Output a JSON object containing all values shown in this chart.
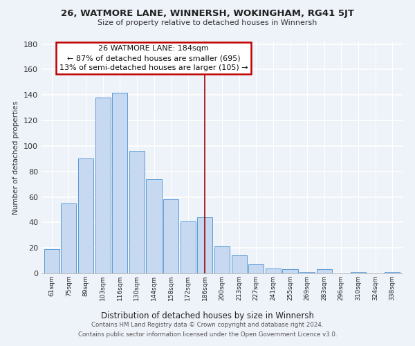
{
  "title": "26, WATMORE LANE, WINNERSH, WOKINGHAM, RG41 5JT",
  "subtitle": "Size of property relative to detached houses in Winnersh",
  "xlabel": "Distribution of detached houses by size in Winnersh",
  "ylabel": "Number of detached properties",
  "bar_labels": [
    "61sqm",
    "75sqm",
    "89sqm",
    "103sqm",
    "116sqm",
    "130sqm",
    "144sqm",
    "158sqm",
    "172sqm",
    "186sqm",
    "200sqm",
    "213sqm",
    "227sqm",
    "241sqm",
    "255sqm",
    "269sqm",
    "283sqm",
    "296sqm",
    "310sqm",
    "324sqm",
    "338sqm"
  ],
  "bar_values": [
    19,
    55,
    90,
    138,
    142,
    96,
    74,
    58,
    41,
    44,
    21,
    14,
    7,
    4,
    3,
    1,
    3,
    0,
    1,
    0,
    1
  ],
  "bar_color": "#c6d9f1",
  "bar_edge_color": "#5b9bd5",
  "property_line_label": "26 WATMORE LANE: 184sqm",
  "annotation_line1": "← 87% of detached houses are smaller (695)",
  "annotation_line2": "13% of semi-detached houses are larger (105) →",
  "annotation_box_color": "#ffffff",
  "annotation_box_edge": "#c00000",
  "property_line_color": "#990000",
  "ylim": [
    0,
    182
  ],
  "footer_line1": "Contains HM Land Registry data © Crown copyright and database right 2024.",
  "footer_line2": "Contains public sector information licensed under the Open Government Licence v3.0.",
  "background_color": "#eef2f9"
}
